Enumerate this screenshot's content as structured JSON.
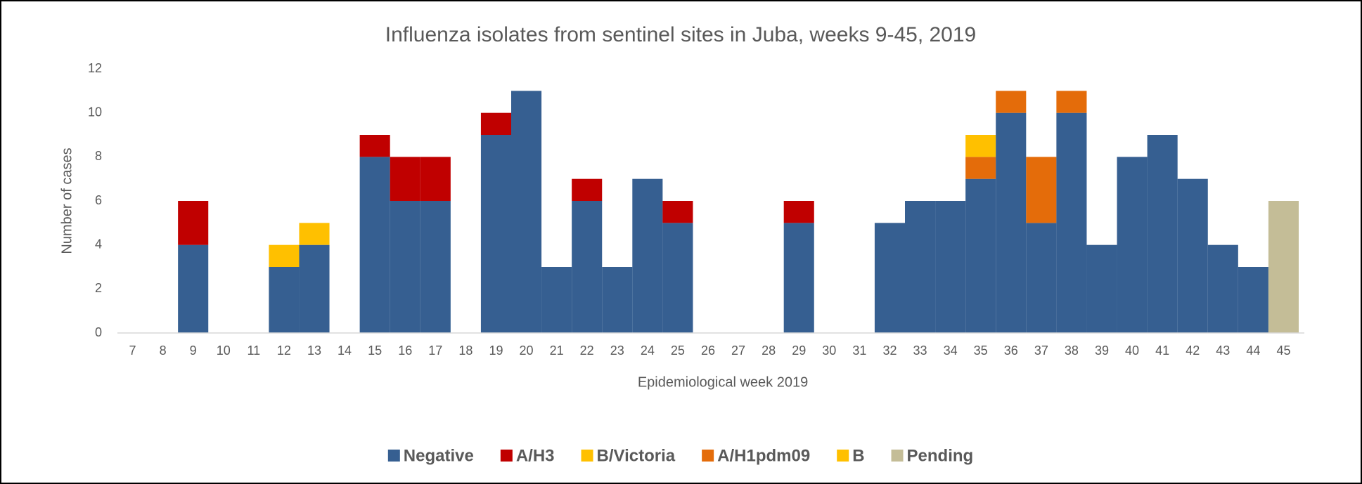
{
  "chart_data": {
    "type": "bar",
    "stacked": true,
    "title": "Influenza isolates from sentinel sites in Juba, weeks 9-45, 2019",
    "x_label": "Epidemiological week 2019",
    "y_label": "Number of cases",
    "categories": [
      "7",
      "8",
      "9",
      "10",
      "11",
      "12",
      "13",
      "14",
      "15",
      "16",
      "17",
      "18",
      "19",
      "20",
      "21",
      "22",
      "23",
      "24",
      "25",
      "26",
      "27",
      "28",
      "29",
      "30",
      "31",
      "32",
      "33",
      "34",
      "35",
      "36",
      "37",
      "38",
      "39",
      "40",
      "41",
      "42",
      "43",
      "44",
      "45"
    ],
    "series": [
      {
        "name": "Negative",
        "color": "#365f91",
        "values": [
          0,
          0,
          4,
          0,
          0,
          3,
          4,
          0,
          8,
          6,
          6,
          0,
          9,
          11,
          3,
          6,
          3,
          7,
          5,
          0,
          0,
          0,
          5,
          0,
          0,
          5,
          6,
          6,
          7,
          10,
          5,
          10,
          4,
          8,
          9,
          7,
          4,
          3,
          0
        ]
      },
      {
        "name": "A/H3",
        "color": "#c00000",
        "values": [
          0,
          0,
          2,
          0,
          0,
          0,
          0,
          0,
          1,
          2,
          2,
          0,
          1,
          0,
          0,
          1,
          0,
          0,
          1,
          0,
          0,
          0,
          1,
          0,
          0,
          0,
          0,
          0,
          0,
          0,
          0,
          0,
          0,
          0,
          0,
          0,
          0,
          0,
          0
        ]
      },
      {
        "name": "B/Victoria",
        "color": "#ffc000",
        "values": [
          0,
          0,
          0,
          0,
          0,
          1,
          1,
          0,
          0,
          0,
          0,
          0,
          0,
          0,
          0,
          0,
          0,
          0,
          0,
          0,
          0,
          0,
          0,
          0,
          0,
          0,
          0,
          0,
          0,
          0,
          0,
          0,
          0,
          0,
          0,
          0,
          0,
          0,
          0
        ]
      },
      {
        "name": "A/H1pdm09",
        "color": "#e46c0a",
        "values": [
          0,
          0,
          0,
          0,
          0,
          0,
          0,
          0,
          0,
          0,
          0,
          0,
          0,
          0,
          0,
          0,
          0,
          0,
          0,
          0,
          0,
          0,
          0,
          0,
          0,
          0,
          0,
          0,
          1,
          1,
          3,
          1,
          0,
          0,
          0,
          0,
          0,
          0,
          0
        ]
      },
      {
        "name": "B",
        "color": "#ffc000",
        "values": [
          0,
          0,
          0,
          0,
          0,
          0,
          0,
          0,
          0,
          0,
          0,
          0,
          0,
          0,
          0,
          0,
          0,
          0,
          0,
          0,
          0,
          0,
          0,
          0,
          0,
          0,
          0,
          0,
          1,
          0,
          0,
          0,
          0,
          0,
          0,
          0,
          0,
          0,
          0
        ]
      },
      {
        "name": "Pending",
        "color": "#c4bd97",
        "values": [
          0,
          0,
          0,
          0,
          0,
          0,
          0,
          0,
          0,
          0,
          0,
          0,
          0,
          0,
          0,
          0,
          0,
          0,
          0,
          0,
          0,
          0,
          0,
          0,
          0,
          0,
          0,
          0,
          0,
          0,
          0,
          0,
          0,
          0,
          0,
          0,
          0,
          0,
          6
        ]
      }
    ],
    "ylim": [
      0,
      12
    ],
    "yticks": [
      0,
      2,
      4,
      6,
      8,
      10,
      12
    ],
    "grid": false,
    "legend": "bottom"
  }
}
